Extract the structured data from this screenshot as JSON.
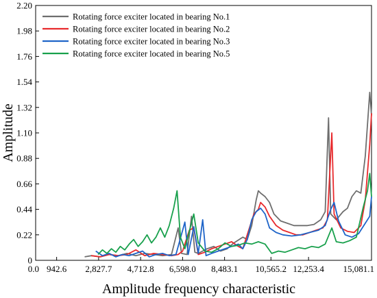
{
  "chart_data": {
    "type": "line",
    "xlabel": "Amplitude frequency characteristic",
    "ylabel": "Amplitude",
    "xlim": [
      0,
      15081.1
    ],
    "ylim": [
      0,
      2.2
    ],
    "x_ticks": [
      0,
      942.6,
      2827.7,
      4712.8,
      6598.0,
      8483.1,
      10565.2,
      12253.4,
      15081.1
    ],
    "x_tick_labels": [
      "0.0",
      "942.6",
      "2,827.7",
      "4,712.8",
      "6,598.0",
      "8,483.1",
      "10,565.2",
      "12,253.4",
      "15,081.1"
    ],
    "y_ticks": [
      0,
      0.22,
      0.44,
      0.66,
      0.88,
      1.1,
      1.32,
      1.54,
      1.76,
      1.98,
      2.2
    ],
    "y_tick_labels": [
      "0",
      "0.22",
      "0.44",
      "0.66",
      "0.88",
      "1.10",
      "1.32",
      "1.54",
      "1.76",
      "1.98",
      "2.20"
    ],
    "legend_position": "top-left",
    "grid": false,
    "series": [
      {
        "name": "Rotating force exciter located in bearing No.1",
        "color": "#6e6e6e",
        "points": [
          [
            2200,
            0.03
          ],
          [
            2500,
            0.04
          ],
          [
            2900,
            0.03
          ],
          [
            3300,
            0.05
          ],
          [
            3700,
            0.04
          ],
          [
            4100,
            0.06
          ],
          [
            4500,
            0.04
          ],
          [
            4900,
            0.06
          ],
          [
            5300,
            0.05
          ],
          [
            5700,
            0.04
          ],
          [
            6100,
            0.05
          ],
          [
            6400,
            0.28
          ],
          [
            6550,
            0.06
          ],
          [
            6800,
            0.05
          ],
          [
            7000,
            0.38
          ],
          [
            7150,
            0.07
          ],
          [
            7300,
            0.06
          ],
          [
            7500,
            0.08
          ],
          [
            7700,
            0.1
          ],
          [
            8000,
            0.12
          ],
          [
            8300,
            0.08
          ],
          [
            8600,
            0.1
          ],
          [
            8900,
            0.15
          ],
          [
            9300,
            0.2
          ],
          [
            9500,
            0.18
          ],
          [
            9700,
            0.3
          ],
          [
            9900,
            0.52
          ],
          [
            10000,
            0.6
          ],
          [
            10100,
            0.58
          ],
          [
            10300,
            0.55
          ],
          [
            10500,
            0.5
          ],
          [
            10700,
            0.4
          ],
          [
            11000,
            0.34
          ],
          [
            11300,
            0.32
          ],
          [
            11600,
            0.3
          ],
          [
            11900,
            0.3
          ],
          [
            12200,
            0.3
          ],
          [
            12500,
            0.31
          ],
          [
            12800,
            0.35
          ],
          [
            13000,
            0.42
          ],
          [
            13150,
            1.23
          ],
          [
            13250,
            0.4
          ],
          [
            13500,
            0.35
          ],
          [
            13800,
            0.42
          ],
          [
            14000,
            0.45
          ],
          [
            14200,
            0.55
          ],
          [
            14400,
            0.6
          ],
          [
            14600,
            0.58
          ],
          [
            14800,
            0.9
          ],
          [
            15000,
            1.45
          ],
          [
            15081,
            1.25
          ]
        ]
      },
      {
        "name": "Rotating force exciter located in bearing No.2",
        "color": "#e8292c",
        "points": [
          [
            2500,
            0.04
          ],
          [
            2900,
            0.03
          ],
          [
            3300,
            0.05
          ],
          [
            3700,
            0.04
          ],
          [
            4100,
            0.05
          ],
          [
            4500,
            0.09
          ],
          [
            4900,
            0.04
          ],
          [
            5300,
            0.06
          ],
          [
            5700,
            0.05
          ],
          [
            6100,
            0.04
          ],
          [
            6400,
            0.05
          ],
          [
            6600,
            0.08
          ],
          [
            6900,
            0.26
          ],
          [
            7100,
            0.28
          ],
          [
            7300,
            0.05
          ],
          [
            7600,
            0.07
          ],
          [
            7900,
            0.1
          ],
          [
            8200,
            0.12
          ],
          [
            8500,
            0.14
          ],
          [
            8800,
            0.16
          ],
          [
            9100,
            0.12
          ],
          [
            9300,
            0.1
          ],
          [
            9600,
            0.28
          ],
          [
            9800,
            0.4
          ],
          [
            10000,
            0.44
          ],
          [
            10100,
            0.5
          ],
          [
            10300,
            0.46
          ],
          [
            10500,
            0.38
          ],
          [
            10800,
            0.3
          ],
          [
            11100,
            0.26
          ],
          [
            11400,
            0.24
          ],
          [
            11700,
            0.22
          ],
          [
            12000,
            0.22
          ],
          [
            12300,
            0.24
          ],
          [
            12600,
            0.26
          ],
          [
            12900,
            0.28
          ],
          [
            13100,
            0.35
          ],
          [
            13300,
            1.1
          ],
          [
            13400,
            0.4
          ],
          [
            13700,
            0.28
          ],
          [
            14000,
            0.25
          ],
          [
            14300,
            0.24
          ],
          [
            14600,
            0.3
          ],
          [
            14800,
            0.52
          ],
          [
            15000,
            1.0
          ],
          [
            15081,
            1.27
          ]
        ]
      },
      {
        "name": "Rotating force exciter located in bearing No.3",
        "color": "#1e64c8",
        "points": [
          [
            2700,
            0.08
          ],
          [
            3000,
            0.04
          ],
          [
            3300,
            0.06
          ],
          [
            3600,
            0.03
          ],
          [
            3900,
            0.05
          ],
          [
            4200,
            0.04
          ],
          [
            4500,
            0.06
          ],
          [
            4800,
            0.08
          ],
          [
            5100,
            0.03
          ],
          [
            5400,
            0.05
          ],
          [
            5700,
            0.06
          ],
          [
            6000,
            0.04
          ],
          [
            6300,
            0.05
          ],
          [
            6700,
            0.33
          ],
          [
            6850,
            0.05
          ],
          [
            7100,
            0.29
          ],
          [
            7300,
            0.06
          ],
          [
            7500,
            0.35
          ],
          [
            7650,
            0.04
          ],
          [
            7900,
            0.06
          ],
          [
            8200,
            0.08
          ],
          [
            8500,
            0.1
          ],
          [
            8800,
            0.12
          ],
          [
            9100,
            0.14
          ],
          [
            9300,
            0.1
          ],
          [
            9500,
            0.18
          ],
          [
            9700,
            0.35
          ],
          [
            9900,
            0.42
          ],
          [
            10100,
            0.45
          ],
          [
            10300,
            0.4
          ],
          [
            10500,
            0.28
          ],
          [
            10800,
            0.24
          ],
          [
            11100,
            0.22
          ],
          [
            11500,
            0.21
          ],
          [
            11900,
            0.22
          ],
          [
            12300,
            0.24
          ],
          [
            12700,
            0.26
          ],
          [
            13000,
            0.3
          ],
          [
            13250,
            0.44
          ],
          [
            13400,
            0.5
          ],
          [
            13600,
            0.34
          ],
          [
            13900,
            0.22
          ],
          [
            14200,
            0.2
          ],
          [
            14500,
            0.23
          ],
          [
            14800,
            0.32
          ],
          [
            15000,
            0.38
          ],
          [
            15081,
            0.55
          ]
        ]
      },
      {
        "name": "Rotating force exciter located in bearing No.5",
        "color": "#18a04c",
        "points": [
          [
            2800,
            0.05
          ],
          [
            3000,
            0.09
          ],
          [
            3200,
            0.06
          ],
          [
            3400,
            0.1
          ],
          [
            3600,
            0.07
          ],
          [
            3800,
            0.12
          ],
          [
            4000,
            0.09
          ],
          [
            4200,
            0.14
          ],
          [
            4400,
            0.18
          ],
          [
            4600,
            0.12
          ],
          [
            4800,
            0.16
          ],
          [
            5000,
            0.22
          ],
          [
            5200,
            0.15
          ],
          [
            5400,
            0.2
          ],
          [
            5600,
            0.28
          ],
          [
            5800,
            0.2
          ],
          [
            6000,
            0.3
          ],
          [
            6200,
            0.45
          ],
          [
            6350,
            0.6
          ],
          [
            6500,
            0.2
          ],
          [
            6700,
            0.1
          ],
          [
            6900,
            0.25
          ],
          [
            7100,
            0.4
          ],
          [
            7300,
            0.15
          ],
          [
            7600,
            0.08
          ],
          [
            7900,
            0.07
          ],
          [
            8200,
            0.1
          ],
          [
            8500,
            0.15
          ],
          [
            8800,
            0.12
          ],
          [
            9100,
            0.13
          ],
          [
            9400,
            0.15
          ],
          [
            9700,
            0.14
          ],
          [
            10000,
            0.16
          ],
          [
            10300,
            0.14
          ],
          [
            10600,
            0.06
          ],
          [
            10900,
            0.08
          ],
          [
            11200,
            0.07
          ],
          [
            11500,
            0.09
          ],
          [
            11800,
            0.11
          ],
          [
            12100,
            0.1
          ],
          [
            12400,
            0.12
          ],
          [
            12700,
            0.11
          ],
          [
            13000,
            0.14
          ],
          [
            13300,
            0.28
          ],
          [
            13500,
            0.16
          ],
          [
            13800,
            0.15
          ],
          [
            14100,
            0.17
          ],
          [
            14400,
            0.2
          ],
          [
            14700,
            0.45
          ],
          [
            14900,
            0.6
          ],
          [
            15000,
            0.75
          ],
          [
            15081,
            0.55
          ]
        ]
      }
    ]
  }
}
